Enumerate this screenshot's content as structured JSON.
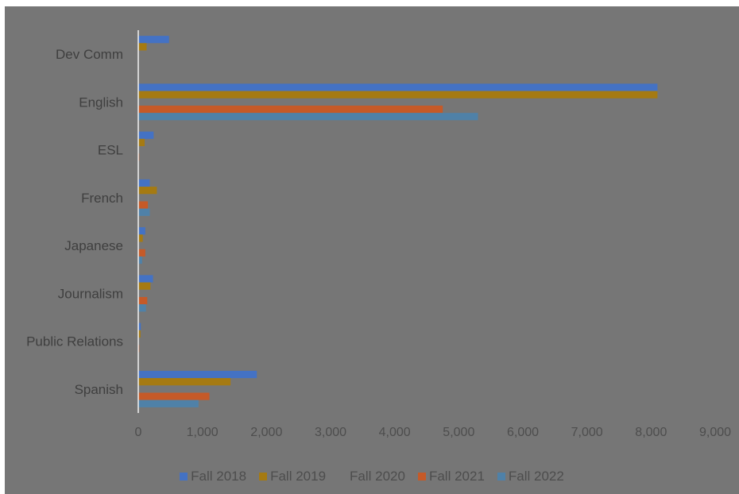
{
  "chart_data": {
    "type": "bar",
    "orientation": "horizontal",
    "categories": [
      "Dev Comm",
      "English",
      "ESL",
      "French",
      "Japanese",
      "Journalism",
      "Public Relations",
      "Spanish"
    ],
    "series": [
      {
        "name": "Fall 2018",
        "color": "#4472c4",
        "values": [
          480,
          8100,
          240,
          180,
          110,
          230,
          40,
          1850
        ]
      },
      {
        "name": "Fall 2019",
        "color": "#a57a12",
        "values": [
          130,
          8100,
          100,
          290,
          70,
          190,
          35,
          1440
        ]
      },
      {
        "name": "Fall 2020",
        "color": "#767676",
        "values": [
          0,
          0,
          0,
          0,
          0,
          0,
          0,
          0
        ]
      },
      {
        "name": "Fall 2021",
        "color": "#c55a28",
        "values": [
          0,
          4750,
          15,
          150,
          110,
          140,
          15,
          1110
        ]
      },
      {
        "name": "Fall 2022",
        "color": "#4f81a8",
        "values": [
          0,
          5300,
          0,
          180,
          60,
          120,
          0,
          940
        ]
      }
    ],
    "xlim": [
      0,
      9000
    ],
    "xticks": [
      "0",
      "1,000",
      "2,000",
      "3,000",
      "4,000",
      "5,000",
      "6,000",
      "7,000",
      "8,000",
      "9,000"
    ],
    "grid": false,
    "legend_position": "bottom",
    "title": "",
    "xlabel": "",
    "ylabel": ""
  }
}
